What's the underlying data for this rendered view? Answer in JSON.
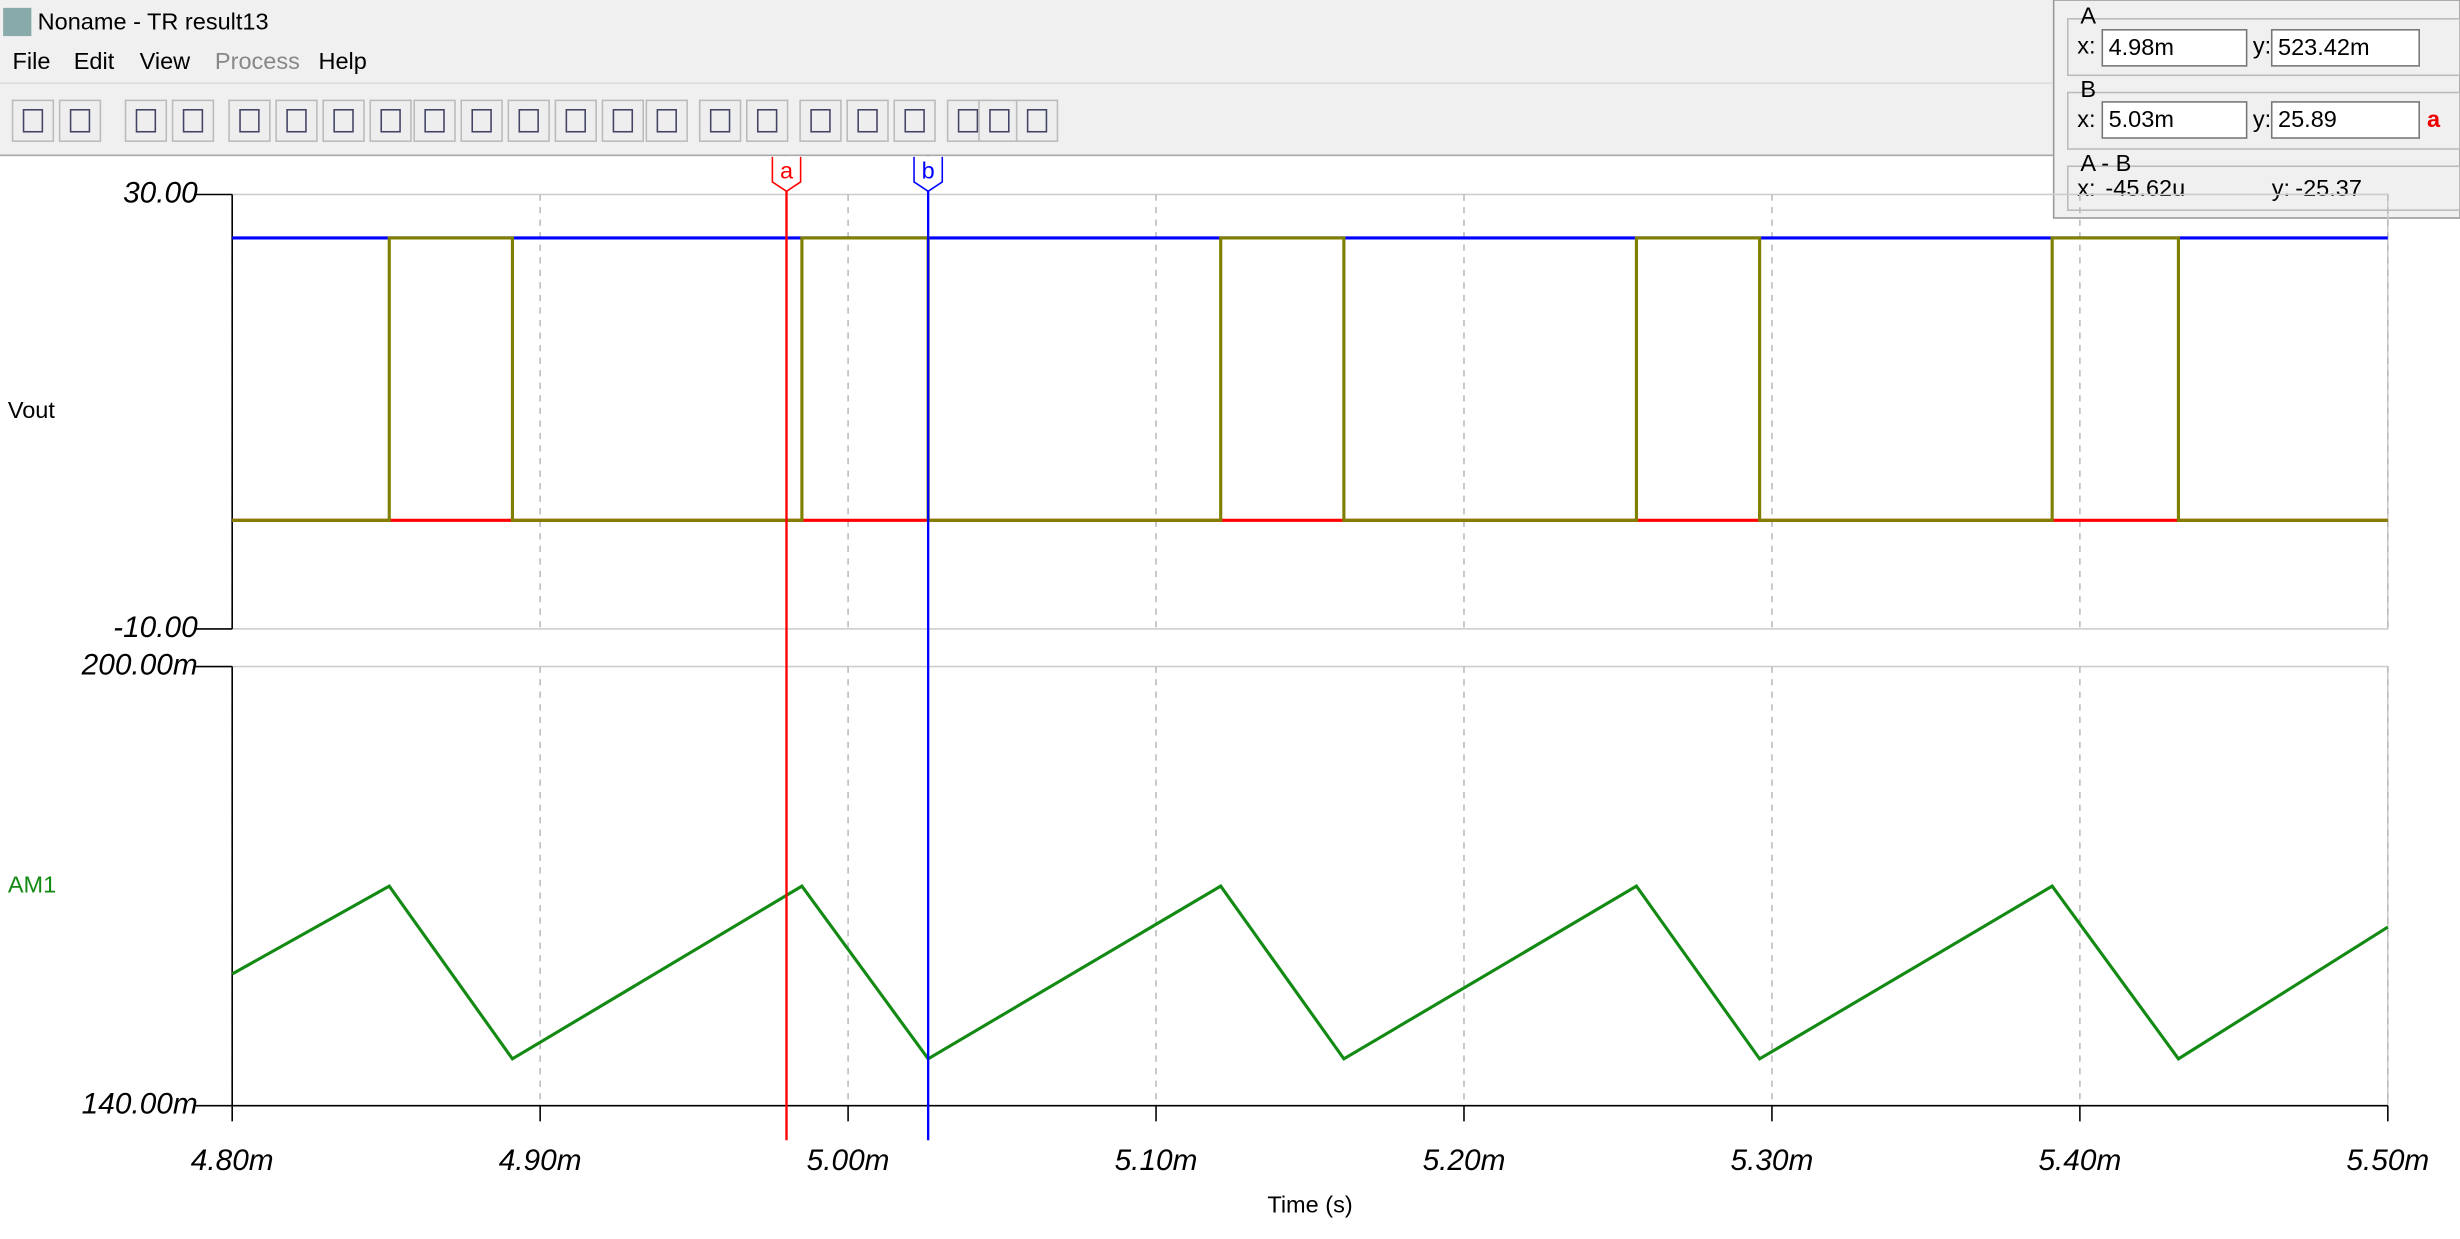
{
  "window": {
    "title": "Noname - TR result13",
    "menu": [
      "File",
      "Edit",
      "View",
      "Process",
      "Help"
    ]
  },
  "cursor_panel": {
    "x_label": "x:",
    "y_label": "y:",
    "a": {
      "label": "A",
      "x": "4.98m",
      "y": "523.42m"
    },
    "b": {
      "label": "B",
      "x": "5.03m",
      "y": "25.89",
      "icon": "a"
    },
    "diff": {
      "label": "A - B",
      "x": "-45.62u",
      "y": "-25.37"
    }
  },
  "chart_data": [
    {
      "type": "line",
      "y_label": "Vout",
      "label_color": "#000000",
      "xlim": [
        0.0048,
        0.0055
      ],
      "ylim": [
        -10,
        30
      ],
      "yticks": [
        {
          "value": -10,
          "label": "-10.00"
        },
        {
          "value": 30,
          "label": "30.00"
        }
      ],
      "grid": true,
      "series": [
        {
          "color": "#0000ff",
          "x": [
            0.0048,
            0.0055
          ],
          "values": [
            26,
            26
          ]
        },
        {
          "color": "#ff0000",
          "x": [
            0.0048,
            0.0055
          ],
          "values": [
            0,
            0
          ]
        },
        {
          "color": "#808000",
          "x": [
            0.0048,
            0.004851,
            0.004851,
            0.004891,
            0.004891,
            0.004985,
            0.004985,
            0.005026,
            0.005026,
            0.005121,
            0.005121,
            0.005161,
            0.005161,
            0.005256,
            0.005256,
            0.005296,
            0.005296,
            0.005391,
            0.005391,
            0.005432,
            0.005432,
            0.0055
          ],
          "values": [
            0,
            0,
            26,
            26,
            0,
            0,
            26,
            26,
            0,
            0,
            26,
            26,
            0,
            0,
            26,
            26,
            0,
            0,
            26,
            26,
            0,
            0
          ]
        }
      ],
      "cursors": [
        {
          "label": "a",
          "x": 0.00498,
          "color": "#ff0000"
        },
        {
          "label": "b",
          "x": 0.005026,
          "color": "#0000ff"
        }
      ]
    },
    {
      "type": "line",
      "y_label": "AM1",
      "label_color": "#138a13",
      "x_label": "Time (s)",
      "xlim": [
        0.0048,
        0.0055
      ],
      "ylim": [
        0.14,
        0.2
      ],
      "yticks": [
        {
          "value": 0.14,
          "label": "140.00m"
        },
        {
          "value": 0.2,
          "label": "200.00m"
        }
      ],
      "grid": true,
      "xticks": [
        {
          "value": 0.0048,
          "label": "4.80m"
        },
        {
          "value": 0.0049,
          "label": "4.90m"
        },
        {
          "value": 0.005,
          "label": "5.00m"
        },
        {
          "value": 0.0051,
          "label": "5.10m"
        },
        {
          "value": 0.0052,
          "label": "5.20m"
        },
        {
          "value": 0.0053,
          "label": "5.30m"
        },
        {
          "value": 0.0054,
          "label": "5.40m"
        },
        {
          "value": 0.0055,
          "label": "5.50m"
        }
      ],
      "series": [
        {
          "color": "#138a13",
          "x": [
            0.0048,
            0.004851,
            0.004891,
            0.004985,
            0.005026,
            0.005121,
            0.005161,
            0.005256,
            0.005296,
            0.005391,
            0.005432,
            0.0055
          ],
          "values": [
            0.158,
            0.17,
            0.1464,
            0.17,
            0.1464,
            0.17,
            0.1464,
            0.17,
            0.1464,
            0.17,
            0.1464,
            0.1644
          ]
        }
      ]
    }
  ]
}
